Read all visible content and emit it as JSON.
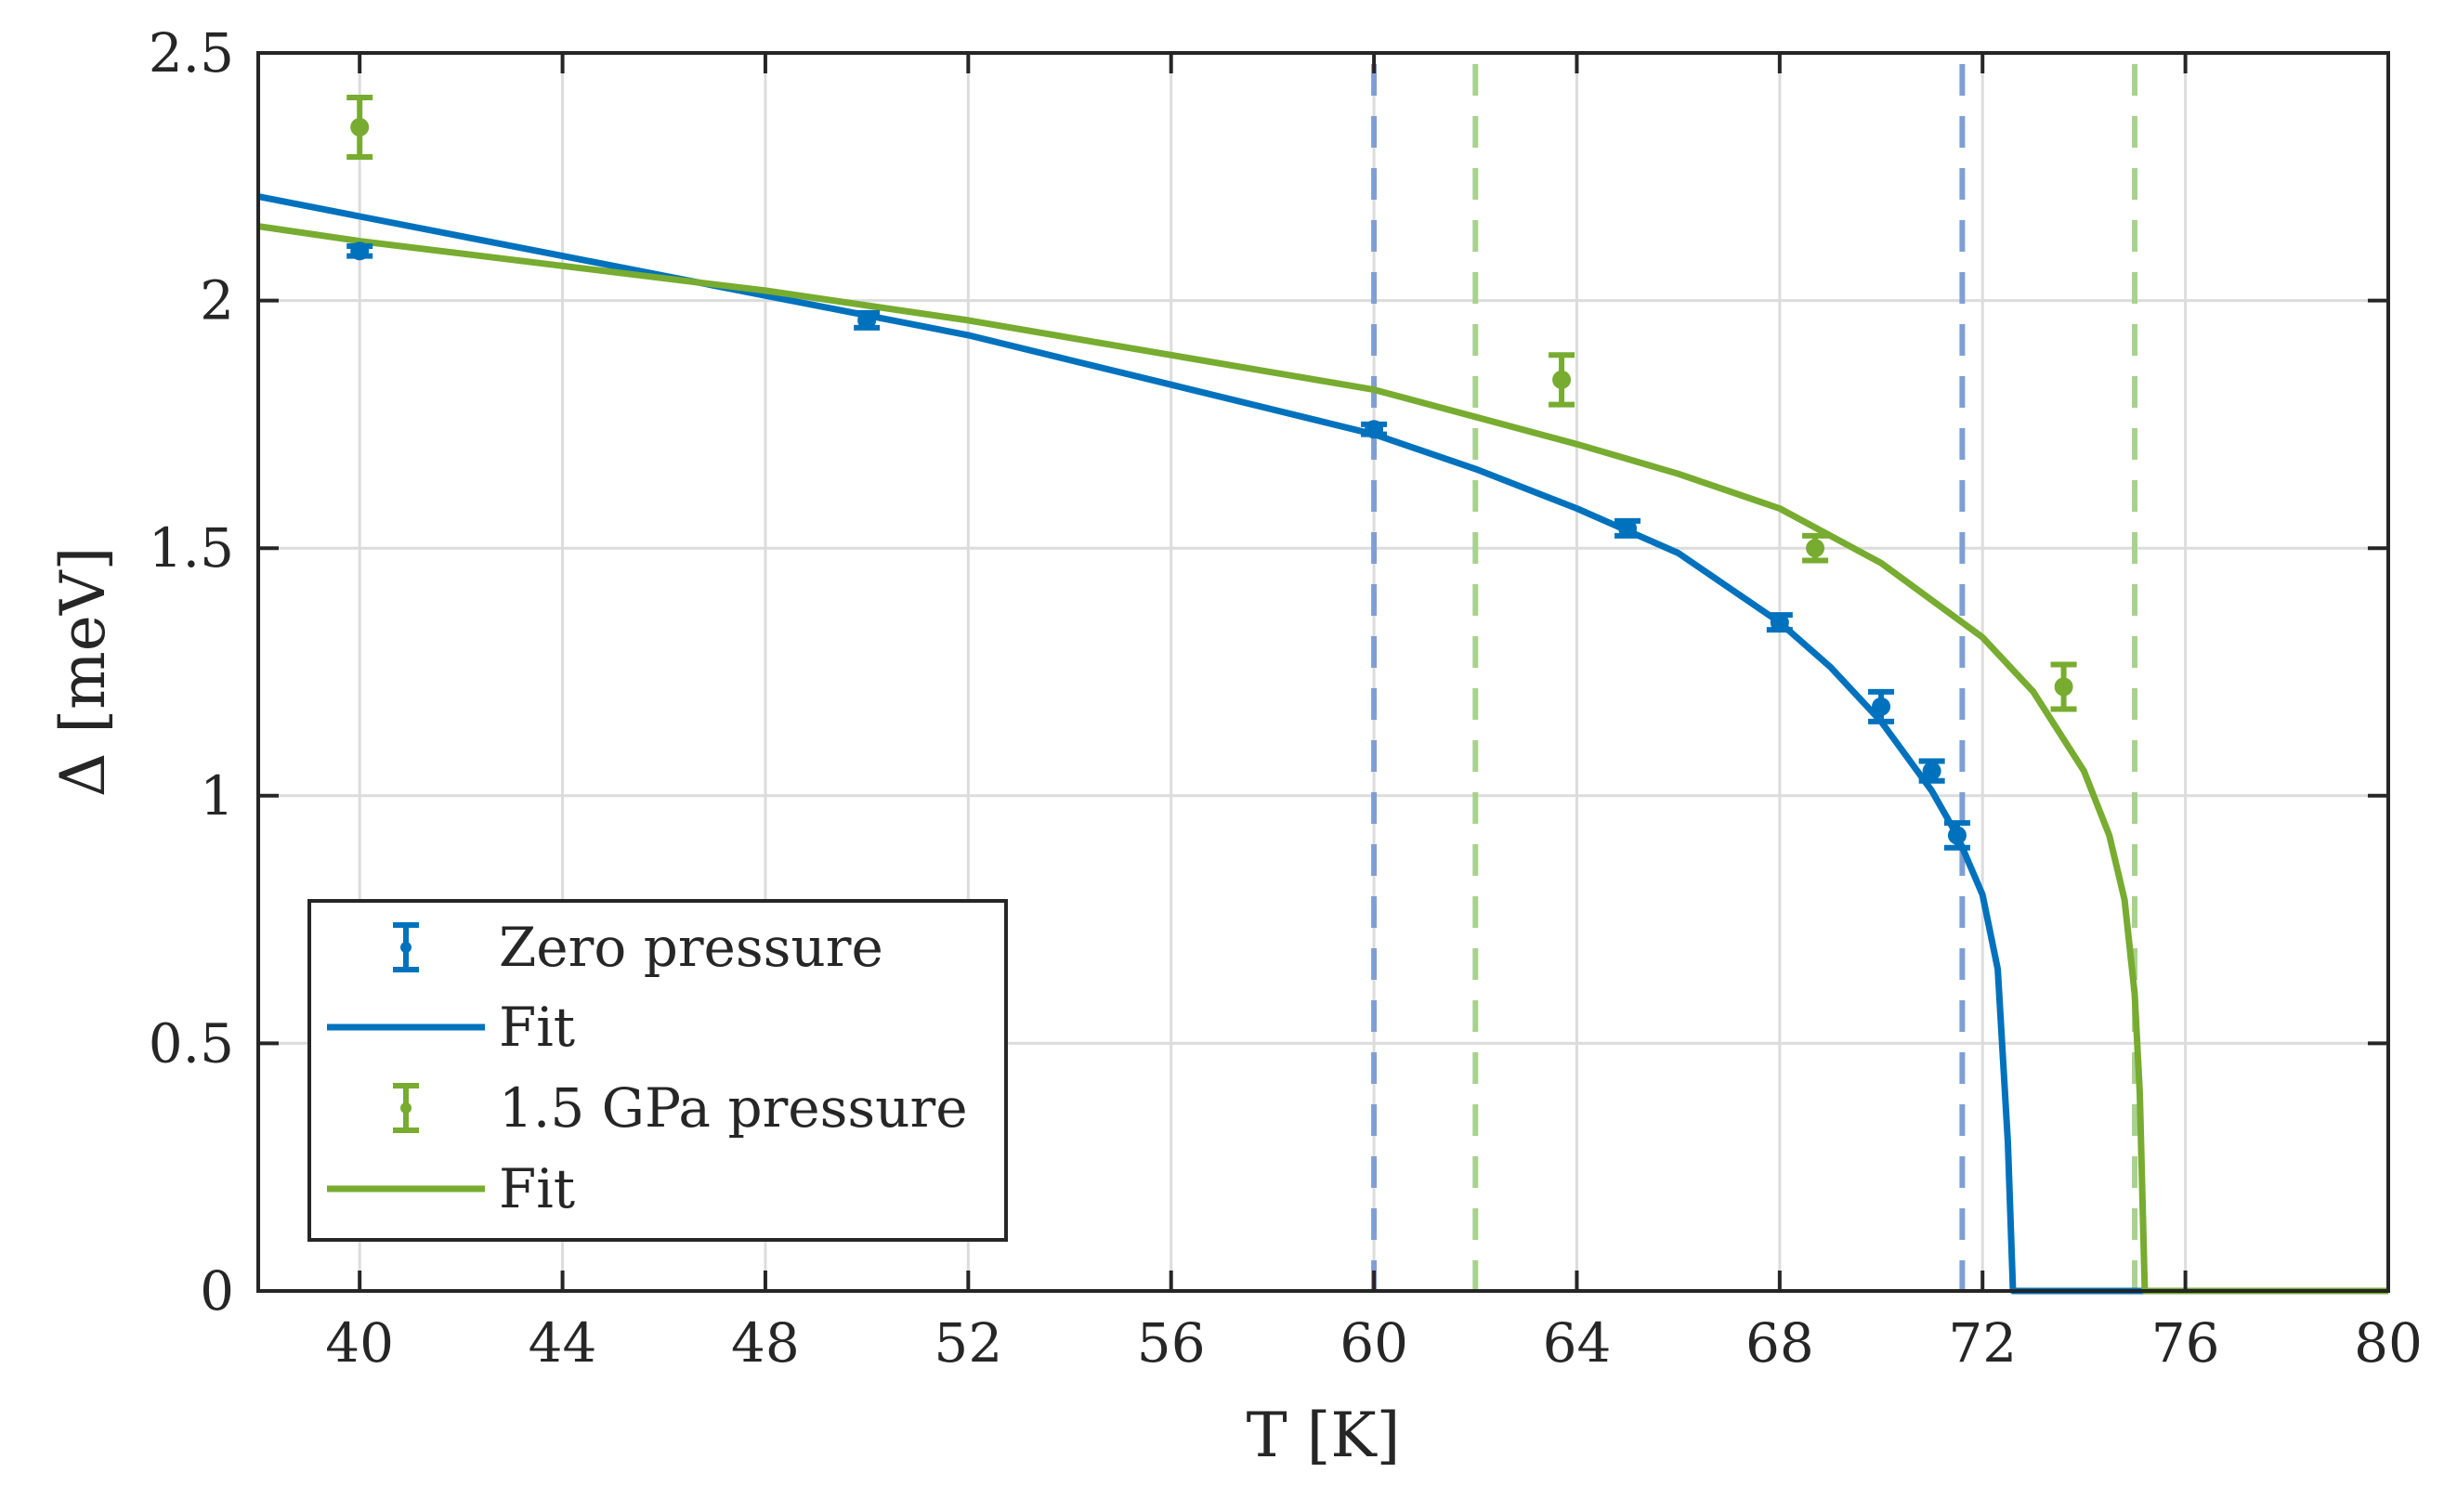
{
  "chart_data": {
    "type": "scatter",
    "title": "",
    "xlabel": "T [K]",
    "ylabel": "Δ [meV]",
    "xlim": [
      38,
      80
    ],
    "ylim": [
      0,
      2.5
    ],
    "grid": true,
    "legend_position": "bottom-left",
    "xticks": [
      40,
      44,
      48,
      52,
      56,
      60,
      64,
      68,
      72,
      76,
      80
    ],
    "xtick_labels": [
      "40",
      "44",
      "48",
      "52",
      "56",
      "60",
      "64",
      "68",
      "72",
      "76",
      "80"
    ],
    "yticks": [
      0,
      0.5,
      1,
      1.5,
      2,
      2.5
    ],
    "ytick_labels": [
      "0",
      "0.5",
      "1",
      "1.5",
      "2",
      "2.5"
    ],
    "series": [
      {
        "name": "Zero pressure",
        "kind": "errorbar",
        "color": "#0072BD",
        "x": [
          40,
          50,
          60,
          65,
          68,
          70,
          71,
          71.5
        ],
        "y": [
          2.1,
          1.96,
          1.74,
          1.54,
          1.35,
          1.18,
          1.05,
          0.92
        ],
        "err": [
          0.01,
          0.015,
          0.01,
          0.015,
          0.015,
          0.03,
          0.02,
          0.025
        ]
      },
      {
        "name": "Fit",
        "kind": "line",
        "color": "#0072BD",
        "Tc": 72.6,
        "x": [
          38,
          40,
          42,
          44,
          46,
          48,
          50,
          52,
          54,
          56,
          58,
          60,
          62,
          64,
          66,
          68,
          69,
          70,
          71,
          71.5,
          72,
          72.3,
          72.5,
          72.6,
          80
        ],
        "y": [
          2.21,
          2.17,
          2.13,
          2.09,
          2.05,
          2.01,
          1.97,
          1.93,
          1.88,
          1.83,
          1.78,
          1.73,
          1.66,
          1.58,
          1.49,
          1.35,
          1.26,
          1.15,
          1.01,
          0.92,
          0.8,
          0.65,
          0.3,
          0,
          0
        ]
      },
      {
        "name": "1.5 GPa pressure",
        "kind": "errorbar",
        "color": "#77AC30",
        "x": [
          40,
          63.7,
          68.7,
          73.6
        ],
        "y": [
          2.35,
          1.84,
          1.5,
          1.22
        ],
        "err": [
          0.06,
          0.05,
          0.025,
          0.045
        ]
      },
      {
        "name": "Fit",
        "kind": "line",
        "color": "#77AC30",
        "Tc": 75.2,
        "x": [
          38,
          40,
          44,
          48,
          52,
          56,
          60,
          64,
          66,
          68,
          70,
          72,
          73,
          74,
          74.5,
          74.8,
          75,
          75.1,
          75.15,
          75.2,
          80
        ],
        "y": [
          2.15,
          2.12,
          2.07,
          2.02,
          1.96,
          1.89,
          1.82,
          1.71,
          1.65,
          1.58,
          1.47,
          1.32,
          1.21,
          1.05,
          0.92,
          0.79,
          0.6,
          0.4,
          0.2,
          0,
          0
        ]
      }
    ],
    "vlines": [
      {
        "x": 60,
        "color": "#7f9fd4",
        "style": "dashed"
      },
      {
        "x": 71.6,
        "color": "#7f9fd4",
        "style": "dashed"
      },
      {
        "x": 62,
        "color": "#a9d18e",
        "style": "dashed"
      },
      {
        "x": 75,
        "color": "#a9d18e",
        "style": "dashed"
      }
    ],
    "legend": [
      {
        "label": "Zero pressure",
        "kind": "errorbar",
        "color": "#0072BD"
      },
      {
        "label": "Fit",
        "kind": "line",
        "color": "#0072BD"
      },
      {
        "label": "1.5 GPa pressure",
        "kind": "errorbar",
        "color": "#77AC30"
      },
      {
        "label": "Fit",
        "kind": "line",
        "color": "#77AC30"
      }
    ]
  }
}
